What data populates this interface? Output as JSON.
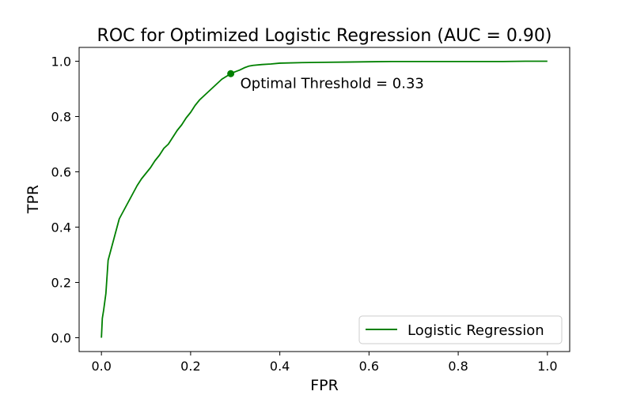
{
  "chart_data": {
    "type": "line",
    "title": "ROC for Optimized Logistic Regression (AUC =  0.90)",
    "xlabel": "FPR",
    "ylabel": "TPR",
    "xlim": [
      -0.05,
      1.05
    ],
    "ylim": [
      -0.05,
      1.05
    ],
    "xticks": [
      0.0,
      0.2,
      0.4,
      0.6,
      0.8,
      1.0
    ],
    "xtick_labels": [
      "0.0",
      "0.2",
      "0.4",
      "0.6",
      "0.8",
      "1.0"
    ],
    "yticks": [
      0.0,
      0.2,
      0.4,
      0.6,
      0.8,
      1.0
    ],
    "ytick_labels": [
      "0.0",
      "0.2",
      "0.4",
      "0.6",
      "0.8",
      "1.0"
    ],
    "grid": false,
    "legend_position": "lower-right",
    "series": [
      {
        "name": "Logistic Regression",
        "color": "#008000",
        "x": [
          0.0,
          0.002,
          0.005,
          0.01,
          0.015,
          0.02,
          0.03,
          0.04,
          0.05,
          0.06,
          0.07,
          0.08,
          0.09,
          0.1,
          0.11,
          0.12,
          0.13,
          0.14,
          0.15,
          0.16,
          0.17,
          0.18,
          0.19,
          0.2,
          0.21,
          0.22,
          0.23,
          0.24,
          0.25,
          0.26,
          0.27,
          0.28,
          0.29,
          0.3,
          0.31,
          0.32,
          0.33,
          0.34,
          0.36,
          0.38,
          0.4,
          0.45,
          0.5,
          0.55,
          0.6,
          0.65,
          0.7,
          0.8,
          0.9,
          0.95,
          1.0
        ],
        "y": [
          0.0,
          0.07,
          0.1,
          0.16,
          0.28,
          0.31,
          0.37,
          0.43,
          0.46,
          0.49,
          0.52,
          0.55,
          0.575,
          0.595,
          0.615,
          0.64,
          0.66,
          0.685,
          0.7,
          0.725,
          0.75,
          0.77,
          0.795,
          0.815,
          0.84,
          0.86,
          0.875,
          0.89,
          0.905,
          0.92,
          0.935,
          0.945,
          0.955,
          0.962,
          0.968,
          0.976,
          0.982,
          0.985,
          0.988,
          0.99,
          0.993,
          0.995,
          0.996,
          0.997,
          0.998,
          0.999,
          0.999,
          0.999,
          0.999,
          1.0,
          1.0
        ]
      }
    ],
    "optimal_point": {
      "x": 0.29,
      "y": 0.955,
      "color": "#008000",
      "label": "Optimal Threshold = 0.33"
    }
  }
}
